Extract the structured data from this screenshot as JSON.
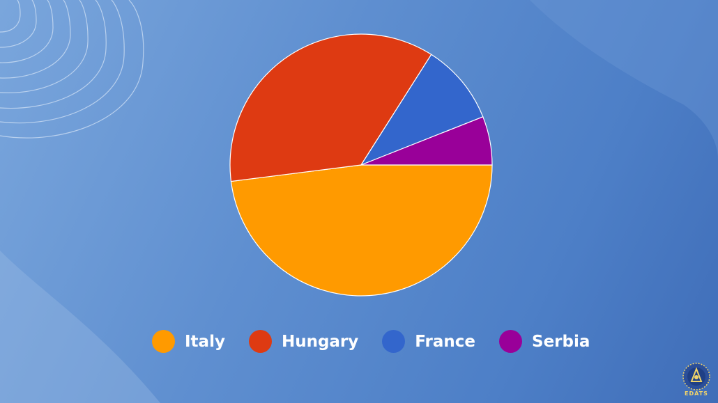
{
  "chart_data": {
    "type": "pie",
    "title": "",
    "start_angle_deg": 0,
    "direction": "clockwise",
    "slices": [
      {
        "label": "Italy",
        "value": 48,
        "color": "#ff9a00"
      },
      {
        "label": "Hungary",
        "value": 36,
        "color": "#de3a12"
      },
      {
        "label": "France",
        "value": 10,
        "color": "#3366cc"
      },
      {
        "label": "Serbia",
        "value": 6,
        "color": "#990099"
      }
    ],
    "legend_position": "bottom"
  },
  "legend": {
    "items": [
      {
        "label": "Italy",
        "color": "#ff9a00"
      },
      {
        "label": "Hungary",
        "color": "#de3a12"
      },
      {
        "label": "France",
        "color": "#3366cc"
      },
      {
        "label": "Serbia",
        "color": "#990099"
      }
    ]
  },
  "logo": {
    "icon": "edats-logo-icon",
    "text": "EDATS"
  }
}
